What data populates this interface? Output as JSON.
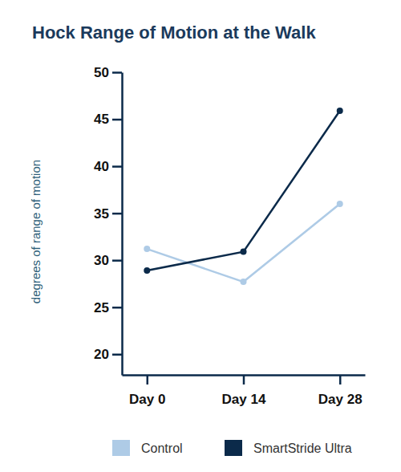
{
  "chart_data": {
    "type": "line",
    "title": "Hock Range of Motion at the Walk",
    "y_label": "degrees of range of motion",
    "categories": [
      "Day 0",
      "Day 14",
      "Day 28"
    ],
    "series": [
      {
        "name": "Control",
        "color": "#aecbe6",
        "values": [
          31.2,
          27.7,
          36
        ],
        "marker": "circle"
      },
      {
        "name": "SmartStride Ultra",
        "color": "#0b2a4a",
        "values": [
          28.9,
          30.9,
          45.9
        ],
        "marker": "circle"
      }
    ],
    "ylim": [
      17.8,
      50
    ],
    "yticks": [
      20,
      25,
      30,
      35,
      40,
      45,
      50
    ],
    "grid": false,
    "legend": "bottom"
  }
}
